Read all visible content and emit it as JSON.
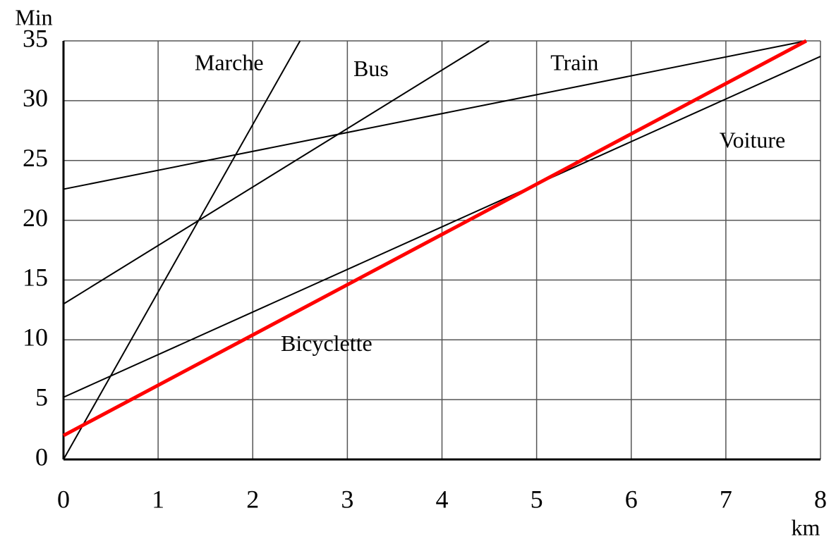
{
  "chart_data": {
    "type": "line",
    "x_label": "km",
    "y_label": "Min",
    "xlim": [
      0,
      8
    ],
    "ylim": [
      0,
      35
    ],
    "xticks": [
      0,
      1,
      2,
      3,
      4,
      5,
      6,
      7,
      8
    ],
    "yticks": [
      0,
      5,
      10,
      15,
      20,
      25,
      30,
      35
    ],
    "grid": true,
    "series": [
      {
        "name": "Marche",
        "color": "#000000",
        "x": [
          0,
          2.5
        ],
        "values": [
          0,
          35
        ]
      },
      {
        "name": "Bus",
        "color": "#000000",
        "x": [
          0,
          4.5
        ],
        "values": [
          13,
          35
        ]
      },
      {
        "name": "Train",
        "color": "#000000",
        "x": [
          0,
          7.85
        ],
        "values": [
          22.6,
          35
        ]
      },
      {
        "name": "Voiture",
        "color": "#000000",
        "x": [
          0,
          8
        ],
        "values": [
          5.2,
          33.7
        ]
      },
      {
        "name": "Bicyclette",
        "color": "#ff0000",
        "x": [
          0,
          7.85
        ],
        "values": [
          2,
          35
        ]
      }
    ]
  }
}
